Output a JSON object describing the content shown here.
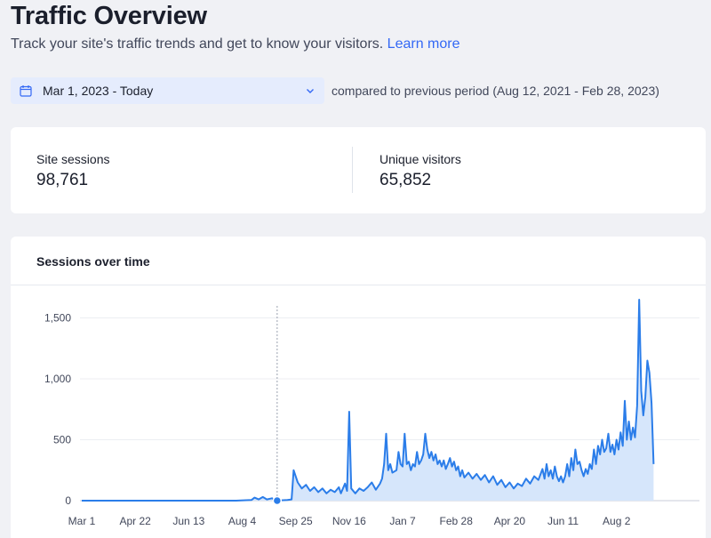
{
  "header": {
    "title": "Traffic Overview",
    "subtitle": "Track your site's traffic trends and get to know your visitors.",
    "learn_more": "Learn more"
  },
  "date_filter": {
    "value": "Mar 1, 2023 - Today",
    "comparison": "compared to previous period (Aug 12, 2021 - Feb 28, 2023)"
  },
  "metrics": [
    {
      "label": "Site sessions",
      "value": "98,761"
    },
    {
      "label": "Unique visitors",
      "value": "65,852"
    }
  ],
  "colors": {
    "accent": "#3368f5",
    "line": "#2b7de9",
    "fill": "#d6e6fb"
  },
  "chart_data": {
    "type": "area",
    "title": "Sessions over time",
    "x_tick_labels": [
      "Mar 1",
      "Apr 22",
      "Jun 13",
      "Aug 4",
      "Sep 25",
      "Nov 16",
      "Jan 7",
      "Feb 28",
      "Apr 20",
      "Jun 11",
      "Aug 2"
    ],
    "y_ticks": [
      0,
      500,
      1000,
      1500
    ],
    "y_tick_labels": [
      "0",
      "500",
      "1,000",
      "1,500"
    ],
    "ylim": [
      0,
      1650
    ],
    "x_day_range": [
      0,
      560
    ],
    "x_tick_days": [
      0,
      52,
      104,
      156,
      208,
      260,
      312,
      364,
      416,
      468,
      520
    ],
    "hover_day": 190,
    "series": [
      {
        "name": "Sessions",
        "points": [
          [
            0,
            0
          ],
          [
            100,
            0
          ],
          [
            150,
            0
          ],
          [
            165,
            5
          ],
          [
            168,
            25
          ],
          [
            172,
            10
          ],
          [
            176,
            30
          ],
          [
            180,
            10
          ],
          [
            185,
            20
          ],
          [
            188,
            0
          ],
          [
            200,
            5
          ],
          [
            204,
            10
          ],
          [
            206,
            250
          ],
          [
            210,
            150
          ],
          [
            214,
            100
          ],
          [
            218,
            130
          ],
          [
            222,
            80
          ],
          [
            226,
            110
          ],
          [
            230,
            70
          ],
          [
            234,
            100
          ],
          [
            238,
            60
          ],
          [
            242,
            90
          ],
          [
            246,
            70
          ],
          [
            250,
            110
          ],
          [
            252,
            60
          ],
          [
            254,
            100
          ],
          [
            256,
            140
          ],
          [
            258,
            80
          ],
          [
            260,
            730
          ],
          [
            262,
            100
          ],
          [
            266,
            60
          ],
          [
            270,
            100
          ],
          [
            274,
            80
          ],
          [
            278,
            110
          ],
          [
            282,
            150
          ],
          [
            286,
            90
          ],
          [
            290,
            140
          ],
          [
            292,
            180
          ],
          [
            294,
            300
          ],
          [
            296,
            550
          ],
          [
            298,
            250
          ],
          [
            300,
            300
          ],
          [
            302,
            230
          ],
          [
            306,
            250
          ],
          [
            308,
            400
          ],
          [
            310,
            300
          ],
          [
            312,
            280
          ],
          [
            314,
            550
          ],
          [
            316,
            300
          ],
          [
            318,
            320
          ],
          [
            320,
            250
          ],
          [
            322,
            300
          ],
          [
            324,
            280
          ],
          [
            326,
            400
          ],
          [
            328,
            300
          ],
          [
            330,
            330
          ],
          [
            332,
            380
          ],
          [
            334,
            550
          ],
          [
            336,
            420
          ],
          [
            338,
            350
          ],
          [
            340,
            400
          ],
          [
            342,
            330
          ],
          [
            344,
            380
          ],
          [
            346,
            300
          ],
          [
            348,
            330
          ],
          [
            350,
            280
          ],
          [
            352,
            330
          ],
          [
            354,
            260
          ],
          [
            356,
            300
          ],
          [
            358,
            350
          ],
          [
            360,
            280
          ],
          [
            362,
            320
          ],
          [
            364,
            250
          ],
          [
            366,
            280
          ],
          [
            368,
            200
          ],
          [
            370,
            250
          ],
          [
            372,
            190
          ],
          [
            376,
            230
          ],
          [
            380,
            180
          ],
          [
            384,
            220
          ],
          [
            388,
            170
          ],
          [
            392,
            210
          ],
          [
            396,
            150
          ],
          [
            400,
            200
          ],
          [
            404,
            130
          ],
          [
            408,
            170
          ],
          [
            412,
            110
          ],
          [
            416,
            150
          ],
          [
            420,
            100
          ],
          [
            424,
            140
          ],
          [
            428,
            120
          ],
          [
            432,
            180
          ],
          [
            436,
            140
          ],
          [
            440,
            200
          ],
          [
            444,
            170
          ],
          [
            448,
            260
          ],
          [
            450,
            180
          ],
          [
            452,
            300
          ],
          [
            454,
            200
          ],
          [
            456,
            250
          ],
          [
            458,
            180
          ],
          [
            460,
            280
          ],
          [
            462,
            200
          ],
          [
            464,
            160
          ],
          [
            466,
            200
          ],
          [
            468,
            150
          ],
          [
            470,
            200
          ],
          [
            472,
            300
          ],
          [
            474,
            200
          ],
          [
            476,
            350
          ],
          [
            478,
            250
          ],
          [
            480,
            420
          ],
          [
            482,
            300
          ],
          [
            484,
            320
          ],
          [
            486,
            250
          ],
          [
            488,
            200
          ],
          [
            490,
            260
          ],
          [
            492,
            220
          ],
          [
            494,
            300
          ],
          [
            496,
            260
          ],
          [
            498,
            420
          ],
          [
            500,
            300
          ],
          [
            502,
            450
          ],
          [
            504,
            380
          ],
          [
            506,
            500
          ],
          [
            508,
            400
          ],
          [
            510,
            430
          ],
          [
            512,
            550
          ],
          [
            514,
            400
          ],
          [
            516,
            460
          ],
          [
            518,
            380
          ],
          [
            520,
            500
          ],
          [
            522,
            420
          ],
          [
            524,
            560
          ],
          [
            526,
            450
          ],
          [
            528,
            820
          ],
          [
            530,
            500
          ],
          [
            532,
            650
          ],
          [
            534,
            500
          ],
          [
            536,
            600
          ],
          [
            538,
            520
          ],
          [
            540,
            780
          ],
          [
            542,
            1650
          ],
          [
            544,
            900
          ],
          [
            546,
            700
          ],
          [
            548,
            850
          ],
          [
            550,
            1150
          ],
          [
            552,
            1050
          ],
          [
            554,
            800
          ],
          [
            556,
            300
          ]
        ]
      }
    ]
  }
}
